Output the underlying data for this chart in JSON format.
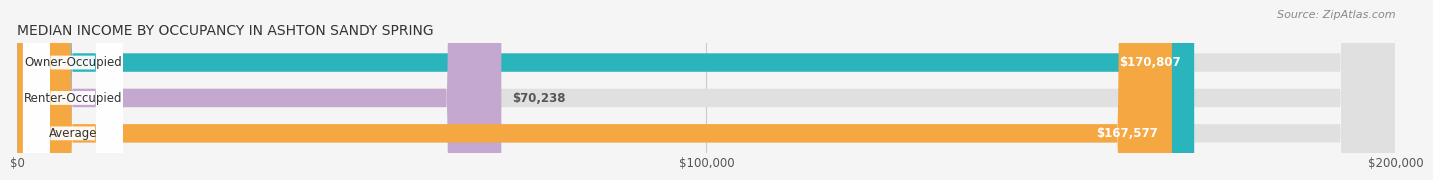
{
  "title": "MEDIAN INCOME BY OCCUPANCY IN ASHTON SANDY SPRING",
  "source": "Source: ZipAtlas.com",
  "categories": [
    "Owner-Occupied",
    "Renter-Occupied",
    "Average"
  ],
  "values": [
    170807,
    70238,
    167577
  ],
  "bar_colors": [
    "#2ab5bc",
    "#c4a8d0",
    "#f5a742"
  ],
  "value_labels": [
    "$170,807",
    "$70,238",
    "$167,577"
  ],
  "xmax": 200000,
  "xtick_labels": [
    "$0",
    "$100,000",
    "$200,000"
  ],
  "background_color": "#f5f5f5",
  "bar_background_color": "#e0e0e0",
  "title_fontsize": 10,
  "source_fontsize": 8,
  "bar_height": 0.52
}
